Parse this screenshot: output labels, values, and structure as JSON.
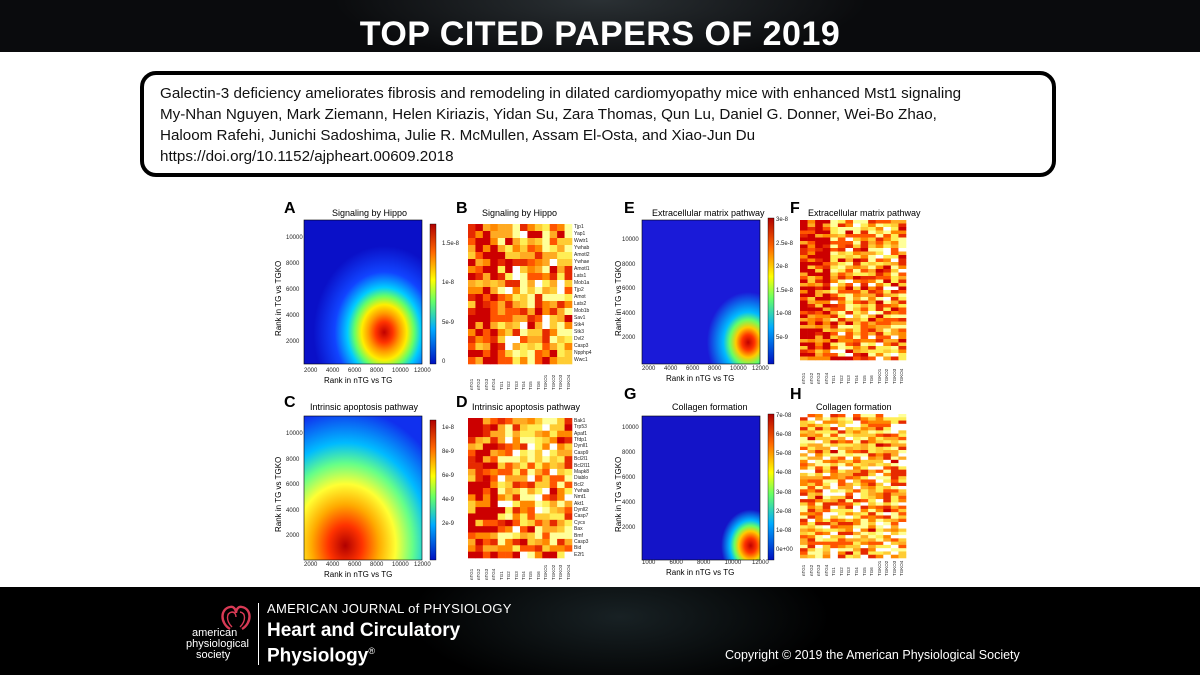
{
  "header": {
    "title": "TOP CITED PAPERS OF 2019"
  },
  "citation": {
    "line1": "Galectin-3 deficiency ameliorates fibrosis and remodeling in dilated cardiomyopathy mice with enhanced Mst1 signaling",
    "line2": "My-Nhan Nguyen, Mark Ziemann, Helen Kiriazis, Yidan Su, Zara Thomas, Qun Lu, Daniel G. Donner, Wei-Bo Zhao,",
    "line3": "Haloom Rafehi, Junichi Sadoshima, Julie R. McMullen,  Assam El-Osta, and Xiao-Jun Du",
    "doi": "https://doi.org/10.1152/ajpheart.00609.2018"
  },
  "figure": {
    "panels": {
      "A": {
        "letter": "A",
        "title": "Signaling by Hippo"
      },
      "B": {
        "letter": "B",
        "title": "Signaling by Hippo"
      },
      "C": {
        "letter": "C",
        "title": "Intrinsic apoptosis pathway"
      },
      "D": {
        "letter": "D",
        "title": "Intrinsic apoptosis pathway"
      },
      "E": {
        "letter": "E",
        "title": "Extracellular matrix pathway"
      },
      "F": {
        "letter": "F",
        "title": "Extracellular matrix pathway"
      },
      "G": {
        "letter": "G",
        "title": "Collagen formation"
      },
      "H": {
        "letter": "H",
        "title": "Collagen formation"
      }
    },
    "xlabel": "Rank in nTG vs TG",
    "ylabel": "Rank in TG vs TGKO",
    "x_ticks": [
      "2000",
      "4000",
      "6000",
      "8000",
      "10000",
      "12000"
    ],
    "x_ticks_g": [
      "1000",
      "6000",
      "8000",
      "10000",
      "12000"
    ],
    "y_ticks": [
      "2000",
      "4000",
      "6000",
      "8000",
      "10000"
    ],
    "scale_A": [
      "1.5e-8",
      "1e-8",
      "5e-9",
      "0"
    ],
    "scale_C": [
      "1e-8",
      "8e-9",
      "6e-9",
      "4e-9",
      "2e-9"
    ],
    "scale_E": [
      "3e-8",
      "2.5e-8",
      "2e-8",
      "1.5e-8",
      "1e-08",
      "5e-9"
    ],
    "scale_G": [
      "7e-08",
      "6e-08",
      "5e-08",
      "4e-08",
      "3e-08",
      "2e-08",
      "1e-08",
      "0e+00"
    ],
    "genes_B": [
      "Tjp1",
      "Yap1",
      "Wwtr1",
      "Ywhab",
      "Amotl2",
      "Ywhae",
      "Amotl1",
      "Lats1",
      "Mob1a",
      "Tjp2",
      "Amot",
      "Lats2",
      "Mob1b",
      "Sav1",
      "Stk4",
      "Stk3",
      "Dvl2",
      "Casp3",
      "Npphp4",
      "Wwc1"
    ],
    "genes_D": [
      "Bak1",
      "Trp53",
      "Apaf1",
      "Tfdp1",
      "Dynll1",
      "Casp9",
      "Bcl2l1",
      "Bcl2l11",
      "Mapk8",
      "Diablo",
      "Bcl2",
      "Ywhab",
      "Nmt1",
      "Akt1",
      "Dynll2",
      "Casp7",
      "Cycs",
      "Bax",
      "Bmf",
      "Casp3",
      "Bid",
      "E2f1"
    ],
    "samples": [
      "nTG1",
      "nTG2",
      "nTG3",
      "nTG4",
      "TG1",
      "TG2",
      "TG3",
      "TG4",
      "TG5",
      "TG6",
      "TGKO1",
      "TGKO2",
      "TGKO3",
      "TGKO4"
    ]
  },
  "footer": {
    "society": [
      "american",
      "physiological",
      "society"
    ],
    "journal_top": "AMERICAN JOURNAL of PHYSIOLOGY",
    "journal_line1": "Heart and Circulatory",
    "journal_line2": "Physiology",
    "registered": "®",
    "copyright": "Copyright © 2019 the American Physiological Society"
  }
}
